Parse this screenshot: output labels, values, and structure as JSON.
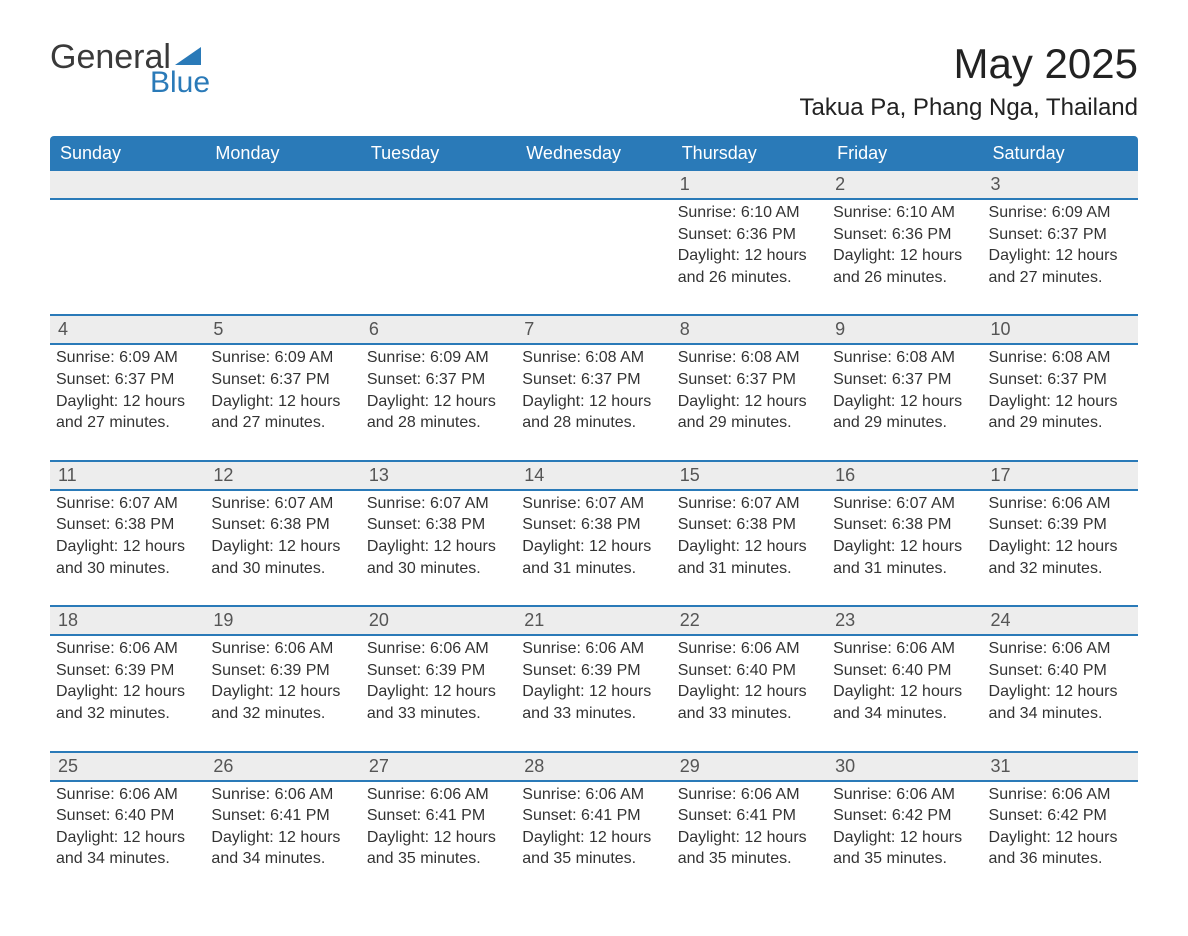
{
  "logo": {
    "general": "General",
    "blue": "Blue"
  },
  "title": "May 2025",
  "location": "Takua Pa, Phang Nga, Thailand",
  "day_headers": [
    "Sunday",
    "Monday",
    "Tuesday",
    "Wednesday",
    "Thursday",
    "Friday",
    "Saturday"
  ],
  "colors": {
    "header_bg": "#2a7ab8",
    "header_text": "#ffffff",
    "daynum_bg": "#ededed",
    "row_border": "#2a7ab8",
    "body_text": "#333333",
    "logo_blue": "#2a7ab8",
    "logo_dark": "#3a3a3a",
    "page_bg": "#ffffff"
  },
  "typography": {
    "title_fontsize": 42,
    "location_fontsize": 24,
    "header_fontsize": 18,
    "daynum_fontsize": 18,
    "info_fontsize": 16,
    "font_family": "Segoe UI, Arial, sans-serif"
  },
  "labels": {
    "sunrise": "Sunrise:",
    "sunset": "Sunset:",
    "daylight": "Daylight:"
  },
  "weeks": [
    [
      null,
      null,
      null,
      null,
      {
        "n": "1",
        "sr": "6:10 AM",
        "ss": "6:36 PM",
        "dl": "12 hours and 26 minutes."
      },
      {
        "n": "2",
        "sr": "6:10 AM",
        "ss": "6:36 PM",
        "dl": "12 hours and 26 minutes."
      },
      {
        "n": "3",
        "sr": "6:09 AM",
        "ss": "6:37 PM",
        "dl": "12 hours and 27 minutes."
      }
    ],
    [
      {
        "n": "4",
        "sr": "6:09 AM",
        "ss": "6:37 PM",
        "dl": "12 hours and 27 minutes."
      },
      {
        "n": "5",
        "sr": "6:09 AM",
        "ss": "6:37 PM",
        "dl": "12 hours and 27 minutes."
      },
      {
        "n": "6",
        "sr": "6:09 AM",
        "ss": "6:37 PM",
        "dl": "12 hours and 28 minutes."
      },
      {
        "n": "7",
        "sr": "6:08 AM",
        "ss": "6:37 PM",
        "dl": "12 hours and 28 minutes."
      },
      {
        "n": "8",
        "sr": "6:08 AM",
        "ss": "6:37 PM",
        "dl": "12 hours and 29 minutes."
      },
      {
        "n": "9",
        "sr": "6:08 AM",
        "ss": "6:37 PM",
        "dl": "12 hours and 29 minutes."
      },
      {
        "n": "10",
        "sr": "6:08 AM",
        "ss": "6:37 PM",
        "dl": "12 hours and 29 minutes."
      }
    ],
    [
      {
        "n": "11",
        "sr": "6:07 AM",
        "ss": "6:38 PM",
        "dl": "12 hours and 30 minutes."
      },
      {
        "n": "12",
        "sr": "6:07 AM",
        "ss": "6:38 PM",
        "dl": "12 hours and 30 minutes."
      },
      {
        "n": "13",
        "sr": "6:07 AM",
        "ss": "6:38 PM",
        "dl": "12 hours and 30 minutes."
      },
      {
        "n": "14",
        "sr": "6:07 AM",
        "ss": "6:38 PM",
        "dl": "12 hours and 31 minutes."
      },
      {
        "n": "15",
        "sr": "6:07 AM",
        "ss": "6:38 PM",
        "dl": "12 hours and 31 minutes."
      },
      {
        "n": "16",
        "sr": "6:07 AM",
        "ss": "6:38 PM",
        "dl": "12 hours and 31 minutes."
      },
      {
        "n": "17",
        "sr": "6:06 AM",
        "ss": "6:39 PM",
        "dl": "12 hours and 32 minutes."
      }
    ],
    [
      {
        "n": "18",
        "sr": "6:06 AM",
        "ss": "6:39 PM",
        "dl": "12 hours and 32 minutes."
      },
      {
        "n": "19",
        "sr": "6:06 AM",
        "ss": "6:39 PM",
        "dl": "12 hours and 32 minutes."
      },
      {
        "n": "20",
        "sr": "6:06 AM",
        "ss": "6:39 PM",
        "dl": "12 hours and 33 minutes."
      },
      {
        "n": "21",
        "sr": "6:06 AM",
        "ss": "6:39 PM",
        "dl": "12 hours and 33 minutes."
      },
      {
        "n": "22",
        "sr": "6:06 AM",
        "ss": "6:40 PM",
        "dl": "12 hours and 33 minutes."
      },
      {
        "n": "23",
        "sr": "6:06 AM",
        "ss": "6:40 PM",
        "dl": "12 hours and 34 minutes."
      },
      {
        "n": "24",
        "sr": "6:06 AM",
        "ss": "6:40 PM",
        "dl": "12 hours and 34 minutes."
      }
    ],
    [
      {
        "n": "25",
        "sr": "6:06 AM",
        "ss": "6:40 PM",
        "dl": "12 hours and 34 minutes."
      },
      {
        "n": "26",
        "sr": "6:06 AM",
        "ss": "6:41 PM",
        "dl": "12 hours and 34 minutes."
      },
      {
        "n": "27",
        "sr": "6:06 AM",
        "ss": "6:41 PM",
        "dl": "12 hours and 35 minutes."
      },
      {
        "n": "28",
        "sr": "6:06 AM",
        "ss": "6:41 PM",
        "dl": "12 hours and 35 minutes."
      },
      {
        "n": "29",
        "sr": "6:06 AM",
        "ss": "6:41 PM",
        "dl": "12 hours and 35 minutes."
      },
      {
        "n": "30",
        "sr": "6:06 AM",
        "ss": "6:42 PM",
        "dl": "12 hours and 35 minutes."
      },
      {
        "n": "31",
        "sr": "6:06 AM",
        "ss": "6:42 PM",
        "dl": "12 hours and 36 minutes."
      }
    ]
  ]
}
